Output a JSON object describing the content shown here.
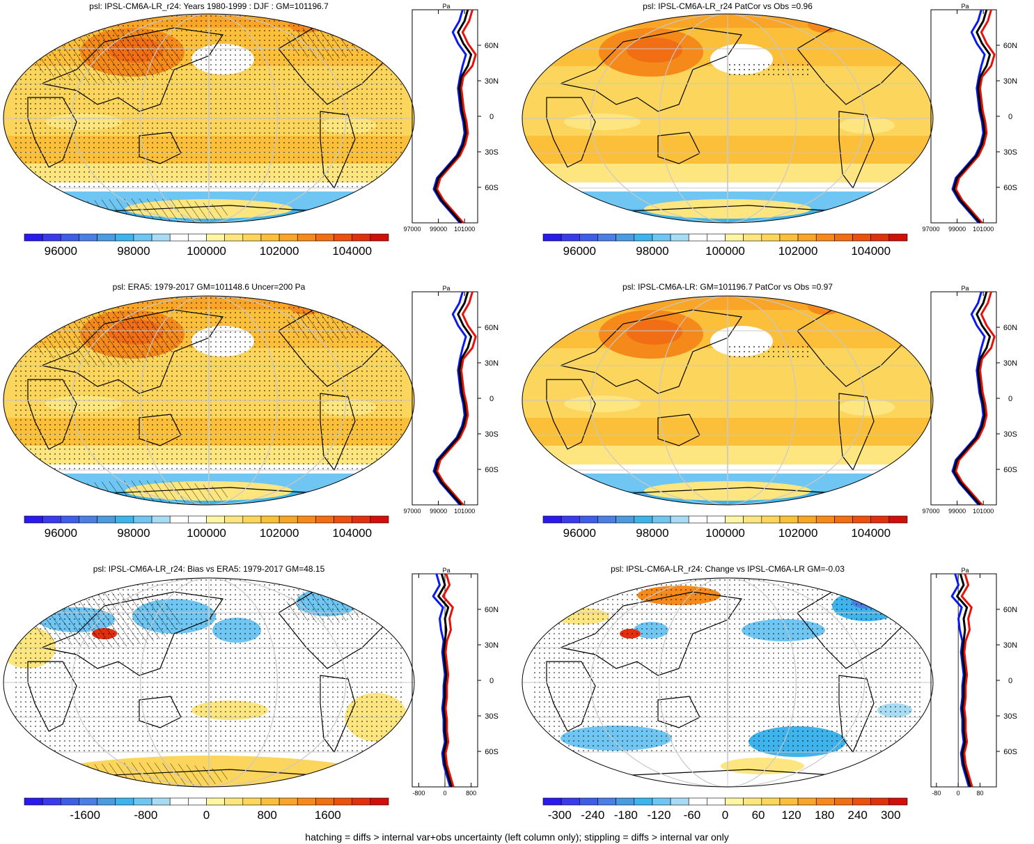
{
  "footnote": "hatching = diffs > internal var+obs uncertainty (left column only); stippling = diffs > internal var only",
  "colors": {
    "psl_scale": [
      "#2a1af0",
      "#3a3aee",
      "#3f5ee8",
      "#4a7fe3",
      "#4b9be0",
      "#3fb3ec",
      "#6fc6f2",
      "#a7dcf4",
      "#ffffff",
      "#ffffff",
      "#fff6a3",
      "#fde680",
      "#fcd55c",
      "#fbbf3a",
      "#f9a527",
      "#f58a1b",
      "#f16e14",
      "#ec4f0e",
      "#e2300c",
      "#d40f09"
    ],
    "profile_obs": "#0a19f0",
    "profile_model": "#e8100a",
    "profile_mean": "#000000"
  },
  "chart_data": [
    {
      "id": "psl-model-djf",
      "type": "heatmap",
      "title": "psl: IPSL-CM6A-LR_r24: Years 1980-1999 : DJF : GM=101196.7",
      "colorbar_labels": [
        "96000",
        "98000",
        "100000",
        "102000",
        "104000"
      ],
      "colorbar_range": [
        95000,
        105000
      ],
      "colorbar_mid": 100000,
      "lat_labels": [
        "60N",
        "30N",
        "0",
        "30S",
        "60S"
      ],
      "profile_xlabels": [
        "97000",
        "99000",
        "101000"
      ],
      "profile_unit": "Pa",
      "profile_xlim": [
        97000,
        102000
      ],
      "hatching": true
    },
    {
      "id": "psl-model-patcor",
      "type": "heatmap",
      "title": "psl: IPSL-CM6A-LR_r24 PatCor vs Obs =0.96",
      "colorbar_labels": [
        "96000",
        "98000",
        "100000",
        "102000",
        "104000"
      ],
      "colorbar_range": [
        95000,
        105000
      ],
      "colorbar_mid": 100000,
      "lat_labels": [
        "60N",
        "30N",
        "0",
        "30S",
        "60S"
      ],
      "profile_xlabels": [
        "97000",
        "99000",
        "101000"
      ],
      "profile_unit": "Pa",
      "profile_xlim": [
        97000,
        102000
      ],
      "hatching": false
    },
    {
      "id": "psl-era5",
      "type": "heatmap",
      "title": "psl: ERA5: 1979-2017 GM=101148.6 Uncer=200 Pa",
      "colorbar_labels": [
        "96000",
        "98000",
        "100000",
        "102000",
        "104000"
      ],
      "colorbar_range": [
        95000,
        105000
      ],
      "colorbar_mid": 100000,
      "lat_labels": [
        "60N",
        "30N",
        "0",
        "30S",
        "60S"
      ],
      "profile_xlabels": [
        "97000",
        "99000",
        "101000"
      ],
      "profile_unit": "Pa",
      "profile_xlim": [
        97000,
        102000
      ],
      "hatching": true
    },
    {
      "id": "psl-ensemble",
      "type": "heatmap",
      "title": "psl: IPSL-CM6A-LR: GM=101196.7 PatCor vs Obs =0.97",
      "colorbar_labels": [
        "96000",
        "98000",
        "100000",
        "102000",
        "104000"
      ],
      "colorbar_range": [
        95000,
        105000
      ],
      "colorbar_mid": 100000,
      "lat_labels": [
        "60N",
        "30N",
        "0",
        "30S",
        "60S"
      ],
      "profile_xlabels": [
        "97000",
        "99000",
        "101000"
      ],
      "profile_unit": "Pa",
      "profile_xlim": [
        97000,
        102000
      ],
      "hatching": false
    },
    {
      "id": "psl-bias",
      "type": "heatmap",
      "title": "psl: IPSL-CM6A-LR_r24: Bias vs ERA5: 1979-2017 GM=48.15",
      "colorbar_labels": [
        "-1600",
        "-800",
        "0",
        "800",
        "1600"
      ],
      "colorbar_range": [
        -2400,
        2400
      ],
      "colorbar_mid": 0,
      "lat_labels": [
        "60N",
        "30N",
        "0",
        "30S",
        "60S"
      ],
      "profile_xlabels": [
        "-800",
        "0",
        "800"
      ],
      "profile_unit": "Pa",
      "profile_xlim": [
        -1000,
        1000
      ],
      "hatching": true
    },
    {
      "id": "psl-change",
      "type": "heatmap",
      "title": "psl: IPSL-CM6A-LR_r24: Change vs IPSL-CM6A-LR GM=-0.03",
      "colorbar_labels": [
        "-300",
        "-240",
        "-180",
        "-120",
        "-60",
        "0",
        "60",
        "120",
        "180",
        "240",
        "300"
      ],
      "colorbar_range": [
        -330,
        330
      ],
      "colorbar_mid": 0,
      "lat_labels": [
        "60N",
        "30N",
        "0",
        "30S",
        "60S"
      ],
      "profile_xlabels": [
        "-80",
        "0",
        "80"
      ],
      "profile_unit": "Pa",
      "profile_xlim": [
        -100,
        140
      ],
      "hatching": false
    }
  ]
}
